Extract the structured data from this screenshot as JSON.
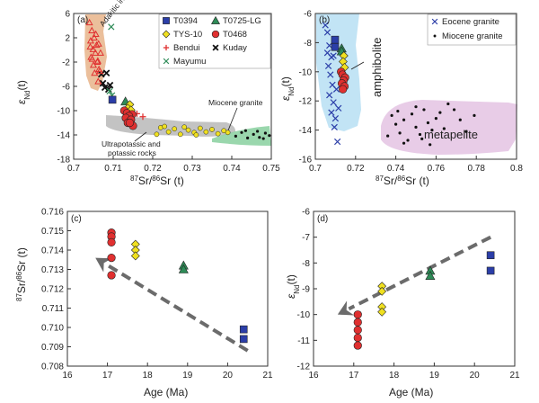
{
  "chart_data": [
    {
      "panel": "(a)",
      "type": "scatter",
      "xlim": [
        0.7,
        0.75
      ],
      "ylim": [
        -18,
        6
      ],
      "xticks": [
        "0.7",
        "0.71",
        "0.72",
        "0.73",
        "0.74",
        "0.75"
      ],
      "yticks": [
        "6",
        "2",
        "-2",
        "-6",
        "-10",
        "-14",
        "-18"
      ],
      "xlabel_sup": "87",
      "xlabel_mid": "Sr/",
      "xlabel_sup2": "86",
      "xlabel_end": "Sr (t)",
      "ylabel_main": "ε",
      "ylabel_sub": "Nd",
      "ylabel_end": "(t)",
      "legend_position": "top-right",
      "series": [
        {
          "name": "T0394",
          "marker": "square",
          "color": "#2b3ea8",
          "points": [
            [
              0.7098,
              -8.2
            ]
          ]
        },
        {
          "name": "T0725-LG",
          "marker": "triangle",
          "color": "#2e8b57",
          "points": [
            [
              0.7131,
              -8.5
            ]
          ]
        },
        {
          "name": "TYS-10",
          "marker": "diamond",
          "color": "#f0e020",
          "points": [
            [
              0.7142,
              -9.0
            ],
            [
              0.7137,
              -9.6
            ],
            [
              0.7145,
              -9.9
            ]
          ]
        },
        {
          "name": "T0468",
          "marker": "circle",
          "color": "#e03030",
          "points": [
            [
              0.7128,
              -10.0
            ],
            [
              0.7135,
              -10.4
            ],
            [
              0.7148,
              -10.6
            ],
            [
              0.714,
              -10.9
            ],
            [
              0.7132,
              -11.2
            ],
            [
              0.7145,
              -11.5
            ],
            [
              0.7137,
              -12.0
            ],
            [
              0.715,
              -12.5
            ],
            [
              0.7142,
              -12.0
            ]
          ]
        },
        {
          "name": "Bendui",
          "marker": "plus",
          "color": "#e03030",
          "points": [
            [
              0.7175,
              -11.0
            ],
            [
              0.716,
              -10.5
            ]
          ]
        },
        {
          "name": "Kuday",
          "marker": "cross",
          "color": "#111111",
          "points": [
            [
              0.707,
              -4.0
            ],
            [
              0.7074,
              -5.5
            ],
            [
              0.7079,
              -6.2
            ],
            [
              0.7083,
              -3.8
            ],
            [
              0.7088,
              -6.5
            ],
            [
              0.7092,
              -5.8
            ]
          ]
        },
        {
          "name": "Mayumu",
          "marker": "xmark",
          "color": "#2e8b57",
          "points": [
            [
              0.7095,
              3.8
            ],
            [
              0.7091,
              -6.8
            ],
            [
              0.7097,
              -7.5
            ]
          ]
        },
        {
          "name": "Adakitic intrusives",
          "marker": "triangle-open",
          "color": "#e03030",
          "points": [
            [
              0.704,
              4.5
            ],
            [
              0.7046,
              3.2
            ],
            [
              0.7052,
              2.0
            ],
            [
              0.7043,
              1.5
            ],
            [
              0.7058,
              0.8
            ],
            [
              0.7049,
              0.1
            ],
            [
              0.7055,
              -0.5
            ],
            [
              0.7044,
              -1.2
            ],
            [
              0.7061,
              -1.8
            ],
            [
              0.705,
              -2.5
            ],
            [
              0.7064,
              -3.2
            ],
            [
              0.7053,
              -3.8
            ],
            [
              0.7047,
              -1.5
            ],
            [
              0.7056,
              2.6
            ],
            [
              0.7063,
              1.0
            ],
            [
              0.7068,
              -0.5
            ],
            [
              0.706,
              -2.0
            ],
            [
              0.7066,
              -3.5
            ],
            [
              0.7042,
              0.5
            ],
            [
              0.7062,
              -5.2
            ]
          ]
        },
        {
          "name": "Ultrapotassic and potassic rocks",
          "marker": "circle-yellow",
          "color": "#f0e020",
          "points": [
            [
              0.722,
              -12.8
            ],
            [
              0.724,
              -13.5
            ],
            [
              0.7255,
              -13.0
            ],
            [
              0.727,
              -13.9
            ],
            [
              0.729,
              -13.2
            ],
            [
              0.7305,
              -13.6
            ],
            [
              0.732,
              -12.9
            ],
            [
              0.7335,
              -13.5
            ],
            [
              0.735,
              -13.1
            ],
            [
              0.7365,
              -13.8
            ],
            [
              0.738,
              -13.3
            ],
            [
              0.739,
              -13.6
            ],
            [
              0.721,
              -13.9
            ],
            [
              0.723,
              -12.6
            ],
            [
              0.728,
              -12.7
            ],
            [
              0.731,
              -14.0
            ]
          ]
        },
        {
          "name": "Miocene granite",
          "marker": "dot",
          "color": "#111111",
          "points": [
            [
              0.741,
              -14.2
            ],
            [
              0.7425,
              -13.6
            ],
            [
              0.744,
              -14.5
            ],
            [
              0.7455,
              -13.9
            ],
            [
              0.747,
              -14.4
            ],
            [
              0.7485,
              -13.7
            ],
            [
              0.7495,
              -14.1
            ],
            [
              0.7435,
              -13.3
            ],
            [
              0.7465,
              -13.4
            ],
            [
              0.748,
              -14.6
            ]
          ]
        }
      ],
      "regions": [
        {
          "label": "Adakitic intrusives",
          "color": "#e8b48a"
        },
        {
          "label": "Ultrapotassic and potassic rocks",
          "color": "#b8b8b8"
        },
        {
          "label": "Miocene granite",
          "color": "#8fd3a4"
        }
      ],
      "annotations": [
        "Adakitic intrusives",
        "Miocene granite",
        "Ultrapotassic and",
        "potassic rocks"
      ]
    },
    {
      "panel": "(b)",
      "type": "scatter",
      "xlim": [
        0.7,
        0.8
      ],
      "ylim": [
        -16,
        -6
      ],
      "xticks": [
        "0.7",
        "0.72",
        "0.74",
        "0.76",
        "0.78",
        "0.8"
      ],
      "yticks": [
        "-6",
        "-8",
        "-10",
        "-12",
        "-14",
        "-16"
      ],
      "xlabel_sup": "87",
      "xlabel_mid": "Sr/",
      "xlabel_sup2": "86",
      "xlabel_end": "Sr (t)",
      "ylabel_main": "ε",
      "ylabel_sub": "Nd",
      "ylabel_end": "(t)",
      "legend_position": "top-right",
      "series": [
        {
          "name": "Eocene granite",
          "marker": "xmark",
          "color": "#2b3ea8",
          "points": [
            [
              0.705,
              -6.8
            ],
            [
              0.706,
              -7.3
            ],
            [
              0.707,
              -8.2
            ],
            [
              0.708,
              -9.0
            ],
            [
              0.7065,
              -9.6
            ],
            [
              0.7075,
              -10.2
            ],
            [
              0.7085,
              -10.9
            ],
            [
              0.707,
              -11.6
            ],
            [
              0.709,
              -12.1
            ],
            [
              0.708,
              -12.8
            ],
            [
              0.71,
              -13.2
            ],
            [
              0.7095,
              -13.8
            ],
            [
              0.711,
              -14.8
            ],
            [
              0.706,
              -8.7
            ],
            [
              0.709,
              -8.9
            ],
            [
              0.7105,
              -11.2
            ],
            [
              0.7115,
              -12.5
            ]
          ]
        },
        {
          "name": "Miocene granite",
          "marker": "dot",
          "color": "#111111",
          "points": [
            [
              0.738,
              -13.0
            ],
            [
              0.74,
              -13.6
            ],
            [
              0.742,
              -14.2
            ],
            [
              0.744,
              -13.3
            ],
            [
              0.746,
              -14.7
            ],
            [
              0.748,
              -12.9
            ],
            [
              0.75,
              -13.8
            ],
            [
              0.752,
              -14.3
            ],
            [
              0.754,
              -12.6
            ],
            [
              0.756,
              -13.5
            ],
            [
              0.758,
              -14.0
            ],
            [
              0.76,
              -13.2
            ],
            [
              0.762,
              -12.8
            ],
            [
              0.764,
              -13.9
            ],
            [
              0.766,
              -12.2
            ],
            [
              0.769,
              -12.6
            ],
            [
              0.772,
              -13.3
            ],
            [
              0.775,
              -14.1
            ],
            [
              0.779,
              -13.0
            ],
            [
              0.736,
              -14.4
            ],
            [
              0.744,
              -14.9
            ],
            [
              0.75,
              -12.4
            ],
            [
              0.757,
              -15.0
            ],
            [
              0.753,
              -14.6
            ],
            [
              0.741,
              -12.7
            ]
          ]
        },
        {
          "name": "T0394",
          "marker": "square",
          "color": "#2b3ea8",
          "points": [
            [
              0.7098,
              -7.8
            ],
            [
              0.7098,
              -8.3
            ]
          ]
        },
        {
          "name": "T0725-LG",
          "marker": "triangle",
          "color": "#2e8b57",
          "points": [
            [
              0.7131,
              -8.4
            ],
            [
              0.7131,
              -8.6
            ]
          ]
        },
        {
          "name": "TYS-10",
          "marker": "diamond",
          "color": "#f0e020",
          "points": [
            [
              0.7142,
              -8.9
            ],
            [
              0.7138,
              -9.3
            ],
            [
              0.7145,
              -9.7
            ]
          ]
        },
        {
          "name": "T0468",
          "marker": "circle",
          "color": "#e03030",
          "points": [
            [
              0.7128,
              -10.0
            ],
            [
              0.7135,
              -10.2
            ],
            [
              0.7148,
              -10.4
            ],
            [
              0.714,
              -10.6
            ],
            [
              0.7132,
              -10.8
            ],
            [
              0.7145,
              -11.0
            ],
            [
              0.7137,
              -11.2
            ]
          ]
        }
      ],
      "regions": [
        {
          "label": "amphibolite",
          "color": "#bfe3f4"
        },
        {
          "label": "metapelite",
          "color": "#e7c9e6"
        }
      ],
      "annotations": [
        "amphibolite",
        "metapelite"
      ]
    },
    {
      "panel": "(c)",
      "type": "scatter",
      "xlim": [
        16,
        21
      ],
      "ylim": [
        0.708,
        0.716
      ],
      "xticks": [
        "16",
        "17",
        "18",
        "19",
        "20",
        "21"
      ],
      "yticks": [
        "0.716",
        "0.715",
        "0.714",
        "0.713",
        "0.712",
        "0.711",
        "0.710",
        "0.709",
        "0.708"
      ],
      "xlabel": "Age (Ma)",
      "ylabel_sup": "87",
      "ylabel_mid": "Sr/",
      "ylabel_sup2": "86",
      "ylabel_end": "Sr (t)",
      "series": [
        {
          "name": "T0468",
          "marker": "circle",
          "color": "#e03030",
          "points": [
            [
              17.1,
              0.7149
            ],
            [
              17.1,
              0.7147
            ],
            [
              17.1,
              0.7144
            ],
            [
              17.1,
              0.7136
            ],
            [
              17.1,
              0.7127
            ]
          ]
        },
        {
          "name": "TYS-10",
          "marker": "diamond",
          "color": "#f0e020",
          "points": [
            [
              17.7,
              0.7143
            ],
            [
              17.7,
              0.714
            ],
            [
              17.7,
              0.7137
            ]
          ]
        },
        {
          "name": "T0725-LG",
          "marker": "triangle",
          "color": "#2e8b57",
          "points": [
            [
              18.9,
              0.7132
            ],
            [
              18.9,
              0.713
            ]
          ]
        },
        {
          "name": "T0394",
          "marker": "square",
          "color": "#2b3ea8",
          "points": [
            [
              20.4,
              0.7099
            ],
            [
              20.4,
              0.7094
            ]
          ]
        }
      ],
      "trend_arrow": {
        "from": [
          20.5,
          0.7088
        ],
        "to": [
          16.7,
          0.7136
        ]
      }
    },
    {
      "panel": "(d)",
      "type": "scatter",
      "xlim": [
        16,
        21
      ],
      "ylim": [
        -12,
        -6
      ],
      "xticks": [
        "16",
        "17",
        "18",
        "19",
        "20",
        "21"
      ],
      "yticks": [
        "-6",
        "-7",
        "-8",
        "-9",
        "-10",
        "-11",
        "-12"
      ],
      "xlabel": "Age (Ma)",
      "ylabel_main": "ε",
      "ylabel_sub": "Nd",
      "ylabel_end": "(t)",
      "series": [
        {
          "name": "T0468",
          "marker": "circle",
          "color": "#e03030",
          "points": [
            [
              17.1,
              -10.0
            ],
            [
              17.1,
              -10.3
            ],
            [
              17.1,
              -10.6
            ],
            [
              17.1,
              -10.9
            ],
            [
              17.1,
              -11.2
            ]
          ]
        },
        {
          "name": "TYS-10",
          "marker": "diamond",
          "color": "#f0e020",
          "points": [
            [
              17.7,
              -8.9
            ],
            [
              17.7,
              -9.1
            ],
            [
              17.7,
              -9.7
            ],
            [
              17.7,
              -9.9
            ]
          ]
        },
        {
          "name": "T0725-LG",
          "marker": "triangle",
          "color": "#2e8b57",
          "points": [
            [
              18.9,
              -8.3
            ],
            [
              18.9,
              -8.5
            ]
          ]
        },
        {
          "name": "T0394",
          "marker": "square",
          "color": "#2b3ea8",
          "points": [
            [
              20.4,
              -7.7
            ],
            [
              20.4,
              -8.3
            ]
          ]
        }
      ],
      "trend_arrow": {
        "from": [
          20.4,
          -7.0
        ],
        "to": [
          16.6,
          -10.0
        ]
      }
    }
  ]
}
